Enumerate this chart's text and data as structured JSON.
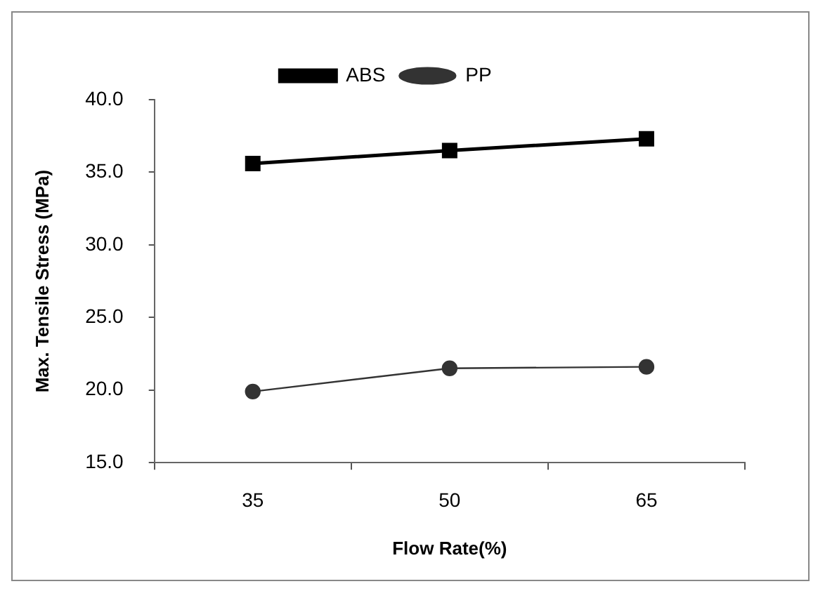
{
  "chart_data": {
    "type": "line",
    "xlabel": "Flow Rate(%)",
    "ylabel": "Max. Tensile Stress (MPa)",
    "categories": [
      "35",
      "50",
      "65"
    ],
    "series": [
      {
        "name": "ABS",
        "color": "#000000",
        "values": [
          35.6,
          36.5,
          37.3
        ],
        "marker": "square"
      },
      {
        "name": "PP",
        "color": "#333333",
        "values": [
          19.9,
          21.5,
          21.6
        ],
        "marker": "circle"
      }
    ],
    "ylim": [
      15,
      40
    ],
    "yticks": [
      {
        "value": 15,
        "label": "15.0"
      },
      {
        "value": 20,
        "label": "20.0"
      },
      {
        "value": 25,
        "label": "25.0"
      },
      {
        "value": 30,
        "label": "30.0"
      },
      {
        "value": 35,
        "label": "35.0"
      },
      {
        "value": 40,
        "label": "40.0"
      }
    ],
    "grid": false,
    "legend": "top",
    "line_style": "solid"
  }
}
